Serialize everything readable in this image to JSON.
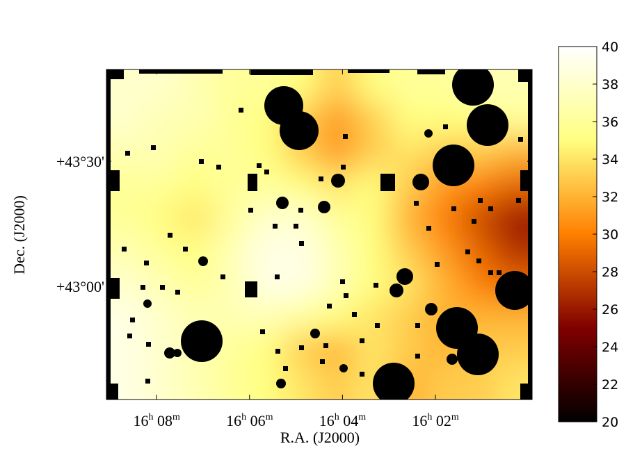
{
  "chart_data": {
    "type": "heatmap",
    "xlabel": "R.A. (J2000)",
    "ylabel": "Dec. (J2000)",
    "xlim": [
      242.27,
      239.98
    ],
    "ylim": [
      42.547,
      43.867
    ],
    "xticks": [
      {
        "value": 242.0,
        "label": [
          "16",
          "h",
          " 08",
          "m"
        ]
      },
      {
        "value": 241.5,
        "label": [
          "16",
          "h",
          " 06",
          "m"
        ]
      },
      {
        "value": 241.0,
        "label": [
          "16",
          "h",
          " 04",
          "m"
        ]
      },
      {
        "value": 240.5,
        "label": [
          "16",
          "h",
          " 02",
          "m"
        ]
      }
    ],
    "yticks": [
      {
        "value": 43.5,
        "label": "+43°30'"
      },
      {
        "value": 43.0,
        "label": "+43°00'"
      }
    ],
    "colormap": "afmhot",
    "zlim": [
      20,
      40
    ],
    "zticks": [
      20,
      22,
      24,
      26,
      28,
      30,
      32,
      34,
      36,
      38,
      40
    ],
    "z": [
      [
        38,
        38,
        37,
        36,
        36,
        35,
        33,
        35,
        36,
        36,
        37,
        37
      ],
      [
        38,
        37,
        37,
        36,
        35,
        33,
        31,
        33,
        35,
        35,
        35,
        36
      ],
      [
        37,
        37,
        36,
        36,
        35,
        33,
        31,
        33,
        34,
        33,
        33,
        32
      ],
      [
        36,
        36,
        35,
        36,
        36,
        35,
        34,
        35,
        33,
        31,
        30,
        29
      ],
      [
        36,
        35,
        34,
        36,
        38,
        38,
        36,
        35,
        32,
        30,
        28,
        26
      ],
      [
        37,
        36,
        35,
        37,
        39,
        39,
        37,
        35,
        33,
        31,
        29,
        27
      ],
      [
        38,
        37,
        36,
        37,
        39,
        39,
        37,
        35,
        34,
        32,
        30,
        29
      ],
      [
        39,
        38,
        37,
        37,
        37,
        36,
        35,
        34,
        33,
        32,
        32,
        32
      ],
      [
        39,
        38,
        37,
        36,
        35,
        33,
        32,
        34,
        33,
        32,
        33,
        33
      ],
      [
        39,
        38,
        37,
        36,
        35,
        34,
        33,
        34,
        32,
        33,
        33,
        34
      ]
    ]
  }
}
